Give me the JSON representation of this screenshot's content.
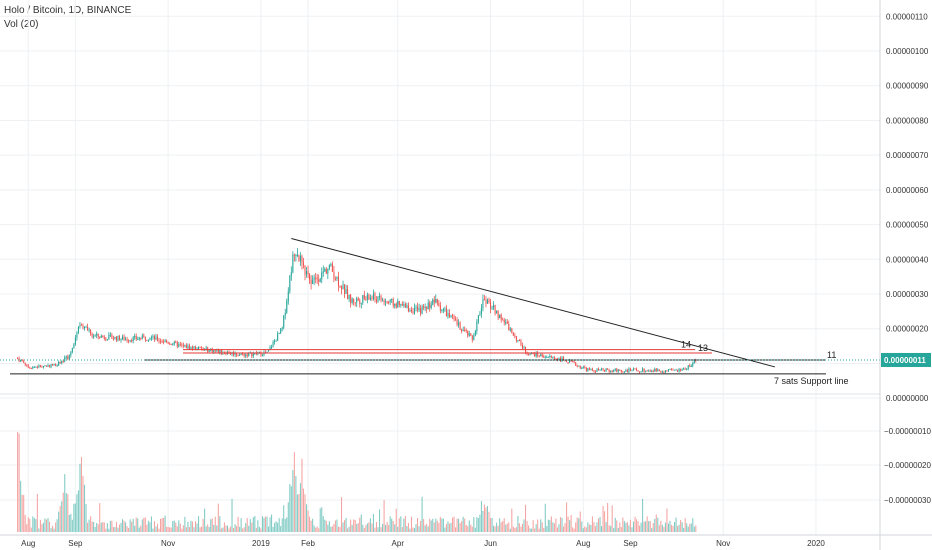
{
  "legend": {
    "title": "Holo / Bitcoin, 1D, BINANCE",
    "indicator": "Vol (20)"
  },
  "colors": {
    "up": "#26a69a",
    "down": "#ef5350",
    "up_vol": "#80cbc4",
    "down_vol": "#f4a4a2",
    "grid": "#eef0f3",
    "axis_text": "#333333",
    "trendline": "#222222",
    "resistance": "#e53935",
    "price_tag": "#26a69a",
    "price_line": "#26a69a"
  },
  "chart_data": {
    "type": "candlestick",
    "price_axis_labels": [
      "0.00000110",
      "0.00000100",
      "0.00000090",
      "0.00000080",
      "0.00000070",
      "0.00000060",
      "0.00000050",
      "0.00000040",
      "0.00000030",
      "0.00000020",
      "0.00000010",
      "0.00000000"
    ],
    "volume_axis_labels": [
      "−0.00000010",
      "−0.00000020",
      "−0.00000030"
    ],
    "time_axis_labels": [
      "Aug",
      "Sep",
      "Nov",
      "2019",
      "Feb",
      "Apr",
      "Jun",
      "Aug",
      "Sep",
      "Nov",
      "2020"
    ],
    "current_price_label": "0.00000011",
    "annotations": [
      "14",
      "13",
      "11",
      "7 sats Support line"
    ],
    "price_keypoints": [
      {
        "date": "2018-07-25",
        "price": 11.5
      },
      {
        "date": "2018-08-02",
        "price": 9
      },
      {
        "date": "2018-08-18",
        "price": 9.5
      },
      {
        "date": "2018-08-28",
        "price": 12
      },
      {
        "date": "2018-09-04",
        "price": 22
      },
      {
        "date": "2018-09-12",
        "price": 18
      },
      {
        "date": "2018-10-05",
        "price": 17
      },
      {
        "date": "2018-10-20",
        "price": 17.5
      },
      {
        "date": "2018-11-10",
        "price": 15
      },
      {
        "date": "2018-12-20",
        "price": 12.5
      },
      {
        "date": "2019-01-05",
        "price": 13
      },
      {
        "date": "2019-01-15",
        "price": 20
      },
      {
        "date": "2019-01-23",
        "price": 43
      },
      {
        "date": "2019-02-03",
        "price": 33
      },
      {
        "date": "2019-02-15",
        "price": 38
      },
      {
        "date": "2019-03-01",
        "price": 28
      },
      {
        "date": "2019-03-15",
        "price": 29
      },
      {
        "date": "2019-04-15",
        "price": 25
      },
      {
        "date": "2019-04-25",
        "price": 28
      },
      {
        "date": "2019-05-20",
        "price": 17
      },
      {
        "date": "2019-05-28",
        "price": 29
      },
      {
        "date": "2019-06-10",
        "price": 22
      },
      {
        "date": "2019-06-25",
        "price": 13
      },
      {
        "date": "2019-07-20",
        "price": 11
      },
      {
        "date": "2019-08-05",
        "price": 8
      },
      {
        "date": "2019-08-25",
        "price": 8
      },
      {
        "date": "2019-09-15",
        "price": 8
      },
      {
        "date": "2019-10-05",
        "price": 8
      },
      {
        "date": "2019-10-15",
        "price": 11
      }
    ],
    "trendline": {
      "start": {
        "date": "2019-01-21",
        "price": 46
      },
      "end": {
        "date": "2019-12-05",
        "price": 9
      }
    },
    "support_line": {
      "price": 7
    },
    "levels": [
      {
        "label": "14",
        "price": 14
      },
      {
        "label": "13",
        "price": 13
      },
      {
        "label": "11",
        "price": 11
      }
    ],
    "volume_peaks": [
      {
        "date": "2018-07-25",
        "value": 41
      },
      {
        "date": "2018-08-25",
        "value": 20
      },
      {
        "date": "2018-09-04",
        "value": 30
      },
      {
        "date": "2019-01-23",
        "value": 31
      },
      {
        "date": "2019-01-28",
        "value": 29
      },
      {
        "date": "2019-05-28",
        "value": 15
      }
    ],
    "xlim": [
      "2018-07-20",
      "2020-02-20"
    ],
    "ylim": [
      -33,
      115
    ],
    "grid": true
  }
}
